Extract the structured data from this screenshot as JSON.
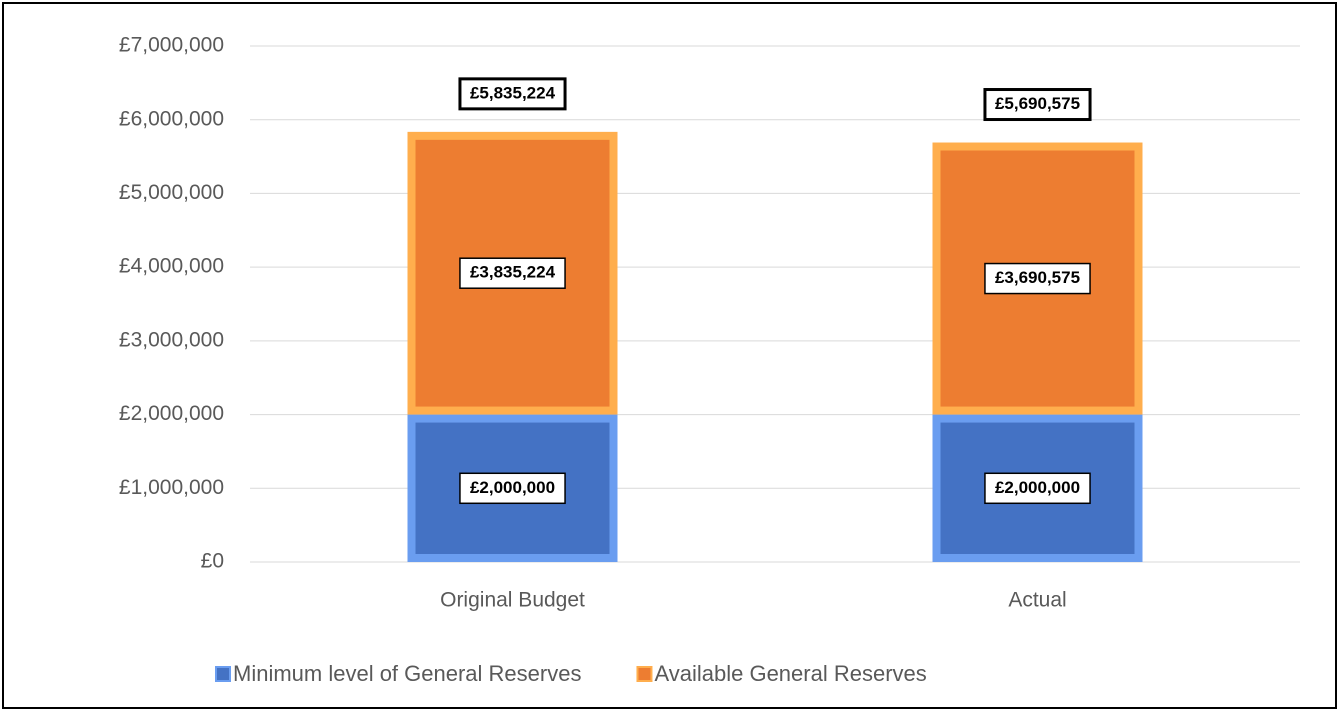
{
  "chart_data": {
    "type": "stacked_bar",
    "categories": [
      "Original Budget",
      "Actual"
    ],
    "series": [
      {
        "name": "Minimum level of General Reserves",
        "color": "#4472c4",
        "values": [
          2000000,
          2000000
        ],
        "value_labels": [
          "£2,000,000",
          "£2,000,000"
        ]
      },
      {
        "name": "Available General Reserves",
        "color": "#ed7d31",
        "values": [
          3835224,
          3690575
        ],
        "value_labels": [
          "£3,835,224",
          "£3,690,575"
        ]
      }
    ],
    "totals": {
      "values": [
        5835224,
        5690575
      ],
      "value_labels": [
        "£5,835,224",
        "£5,690,575"
      ]
    },
    "ylim": [
      0,
      7000000
    ],
    "yticks": [
      {
        "value": 0,
        "label": "£0"
      },
      {
        "value": 1000000,
        "label": "£1,000,000"
      },
      {
        "value": 2000000,
        "label": "£2,000,000"
      },
      {
        "value": 3000000,
        "label": "£3,000,000"
      },
      {
        "value": 4000000,
        "label": "£4,000,000"
      },
      {
        "value": 5000000,
        "label": "£5,000,000"
      },
      {
        "value": 6000000,
        "label": "£6,000,000"
      },
      {
        "value": 7000000,
        "label": "£7,000,000"
      }
    ],
    "grid": true,
    "legend": "bottom"
  }
}
